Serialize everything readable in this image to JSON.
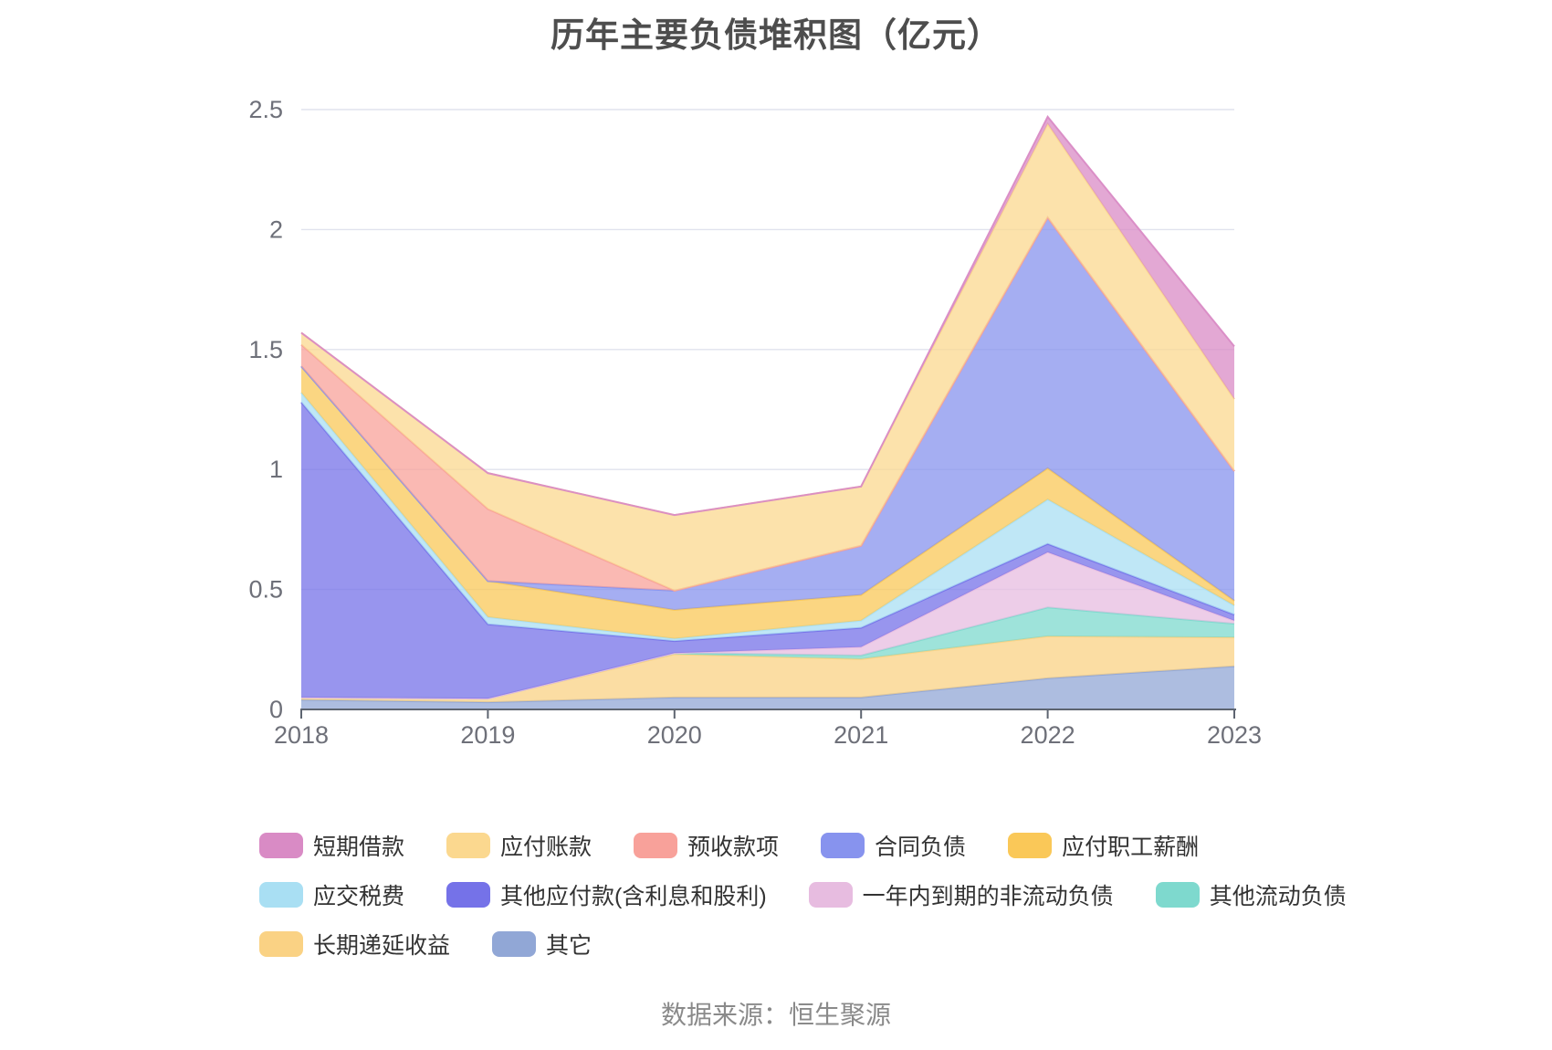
{
  "chart_data": {
    "type": "area",
    "stacked": true,
    "title": "历年主要负债堆积图（亿元）",
    "x": [
      "2018",
      "2019",
      "2020",
      "2021",
      "2022",
      "2023"
    ],
    "xlabel": "",
    "ylabel": "",
    "ylim": [
      0,
      2.5
    ],
    "yticks": [
      "0",
      "0.5",
      "1",
      "1.5",
      "2",
      "2.5"
    ],
    "grid": true,
    "legend_position": "bottom",
    "stacking_note": "series listed in legend order; plotted stacked bottom-up in reverse of this list (其它 at bottom, 短期借款 on top)",
    "series": [
      {
        "name": "短期借款",
        "color": "#D98BC5",
        "values": [
          0,
          0,
          0,
          0,
          0.03,
          0.22
        ]
      },
      {
        "name": "应付账款",
        "color": "#FBD88F",
        "values": [
          0.05,
          0.15,
          0.315,
          0.247,
          0.39,
          0.3
        ]
      },
      {
        "name": "预收款项",
        "color": "#F8A19A",
        "values": [
          0.09,
          0.3,
          0,
          0,
          0,
          0
        ]
      },
      {
        "name": "合同负债",
        "color": "#8793EE",
        "values": [
          0,
          0,
          0.08,
          0.205,
          1.045,
          0.54
        ]
      },
      {
        "name": "应付职工薪酬",
        "color": "#FAC858",
        "values": [
          0.11,
          0.15,
          0.12,
          0.107,
          0.13,
          0.02
        ]
      },
      {
        "name": "应交税费",
        "color": "#A9DFF3",
        "values": [
          0.04,
          0.03,
          0.01,
          0.03,
          0.185,
          0.038
        ]
      },
      {
        "name": "其他应付款(含利息和股利)",
        "color": "#7572E8",
        "values": [
          1.23,
          0.31,
          0.05,
          0.08,
          0.035,
          0.025
        ]
      },
      {
        "name": "一年内到期的非流动负债",
        "color": "#E7BCE0",
        "values": [
          0,
          0,
          0,
          0.035,
          0.23,
          0.013
        ]
      },
      {
        "name": "其他流动负债",
        "color": "#7ED9CE",
        "values": [
          0,
          0,
          0.005,
          0.015,
          0.12,
          0.057
        ]
      },
      {
        "name": "长期递延收益",
        "color": "#FAD284",
        "values": [
          0.01,
          0.015,
          0.18,
          0.16,
          0.175,
          0.12
        ]
      },
      {
        "name": "其它",
        "color": "#91A7D6",
        "values": [
          0.04,
          0.03,
          0.05,
          0.05,
          0.13,
          0.18
        ]
      }
    ],
    "style": {
      "grid_color": "#E0E3EE",
      "axis_color": "#6E7079",
      "fill_opacity": 0.75
    }
  },
  "footer": {
    "source": "数据来源：恒生聚源"
  }
}
